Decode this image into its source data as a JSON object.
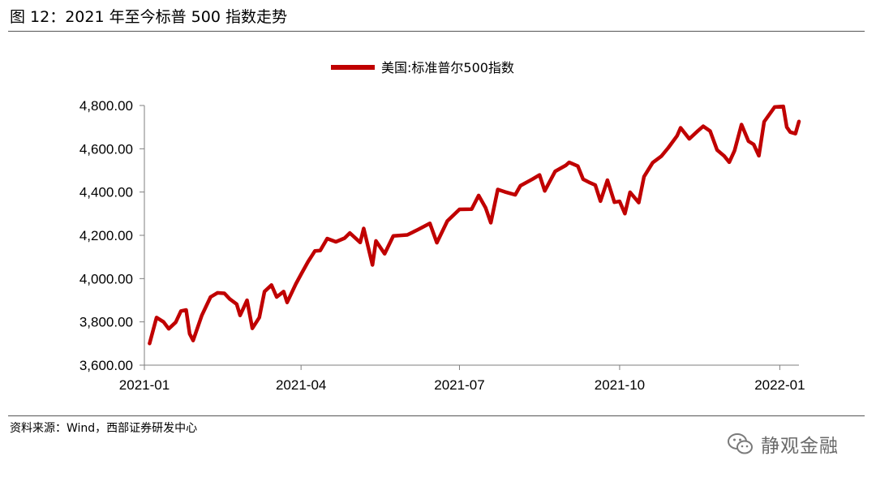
{
  "header": {
    "figure_title": "图 12：2021 年至今标普 500 指数走势"
  },
  "footer": {
    "source": "资料来源：Wind，西部证券研发中心"
  },
  "watermark": {
    "text": "静观金融",
    "icon": "wechat-icon"
  },
  "chart_data": {
    "type": "line",
    "title": "",
    "xlabel": "",
    "ylabel": "",
    "ylim": [
      3600,
      4800
    ],
    "xlim": [
      "2021-01-01",
      "2022-01-12"
    ],
    "yticks": [
      "3,600.00",
      "3,800.00",
      "4,000.00",
      "4,200.00",
      "4,400.00",
      "4,600.00",
      "4,800.00"
    ],
    "xticks": [
      "2021-01",
      "2021-04",
      "2021-07",
      "2021-10",
      "2022-01"
    ],
    "grid": false,
    "legend": "top-center",
    "colors": {
      "series": "#c00000",
      "axis": "#7f7f7f"
    },
    "series": [
      {
        "name": "美国:标准普尔500指数",
        "x": [
          "2021-01-04",
          "2021-01-06",
          "2021-01-08",
          "2021-01-12",
          "2021-01-15",
          "2021-01-19",
          "2021-01-22",
          "2021-01-25",
          "2021-01-27",
          "2021-01-29",
          "2021-02-03",
          "2021-02-08",
          "2021-02-12",
          "2021-02-16",
          "2021-02-19",
          "2021-02-23",
          "2021-02-25",
          "2021-03-01",
          "2021-03-04",
          "2021-03-08",
          "2021-03-11",
          "2021-03-15",
          "2021-03-18",
          "2021-03-22",
          "2021-03-24",
          "2021-03-29",
          "2021-04-01",
          "2021-04-05",
          "2021-04-09",
          "2021-04-12",
          "2021-04-16",
          "2021-04-21",
          "2021-04-26",
          "2021-04-29",
          "2021-05-05",
          "2021-05-07",
          "2021-05-12",
          "2021-05-14",
          "2021-05-19",
          "2021-05-24",
          "2021-06-01",
          "2021-06-07",
          "2021-06-14",
          "2021-06-18",
          "2021-06-24",
          "2021-07-01",
          "2021-07-08",
          "2021-07-12",
          "2021-07-16",
          "2021-07-19",
          "2021-07-23",
          "2021-07-27",
          "2021-08-02",
          "2021-08-05",
          "2021-08-12",
          "2021-08-16",
          "2021-08-19",
          "2021-08-25",
          "2021-08-31",
          "2021-09-02",
          "2021-09-07",
          "2021-09-10",
          "2021-09-14",
          "2021-09-17",
          "2021-09-20",
          "2021-09-24",
          "2021-09-28",
          "2021-10-01",
          "2021-10-04",
          "2021-10-07",
          "2021-10-12",
          "2021-10-15",
          "2021-10-20",
          "2021-10-25",
          "2021-10-29",
          "2021-11-03",
          "2021-11-05",
          "2021-11-10",
          "2021-11-15",
          "2021-11-18",
          "2021-11-22",
          "2021-11-26",
          "2021-11-30",
          "2021-12-03",
          "2021-12-06",
          "2021-12-10",
          "2021-12-14",
          "2021-12-17",
          "2021-12-20",
          "2021-12-23",
          "2021-12-29",
          "2022-01-03",
          "2022-01-05",
          "2022-01-07",
          "2022-01-10",
          "2022-01-12"
        ],
        "values": [
          3700,
          3760,
          3820,
          3800,
          3768,
          3798,
          3850,
          3855,
          3745,
          3714,
          3830,
          3915,
          3934,
          3932,
          3906,
          3882,
          3830,
          3900,
          3770,
          3820,
          3940,
          3970,
          3915,
          3940,
          3890,
          3975,
          4020,
          4078,
          4128,
          4130,
          4185,
          4170,
          4187,
          4211,
          4167,
          4232,
          4063,
          4174,
          4115,
          4197,
          4202,
          4226,
          4255,
          4166,
          4266,
          4320,
          4321,
          4384,
          4327,
          4258,
          4412,
          4401,
          4387,
          4429,
          4460,
          4479,
          4405,
          4496,
          4523,
          4537,
          4520,
          4459,
          4443,
          4432,
          4358,
          4455,
          4353,
          4357,
          4300,
          4399,
          4351,
          4471,
          4536,
          4566,
          4605,
          4660,
          4697,
          4646,
          4683,
          4704,
          4682,
          4594,
          4567,
          4538,
          4591,
          4712,
          4635,
          4620,
          4568,
          4725,
          4793,
          4796,
          4700,
          4677,
          4670,
          4726
        ]
      }
    ]
  }
}
